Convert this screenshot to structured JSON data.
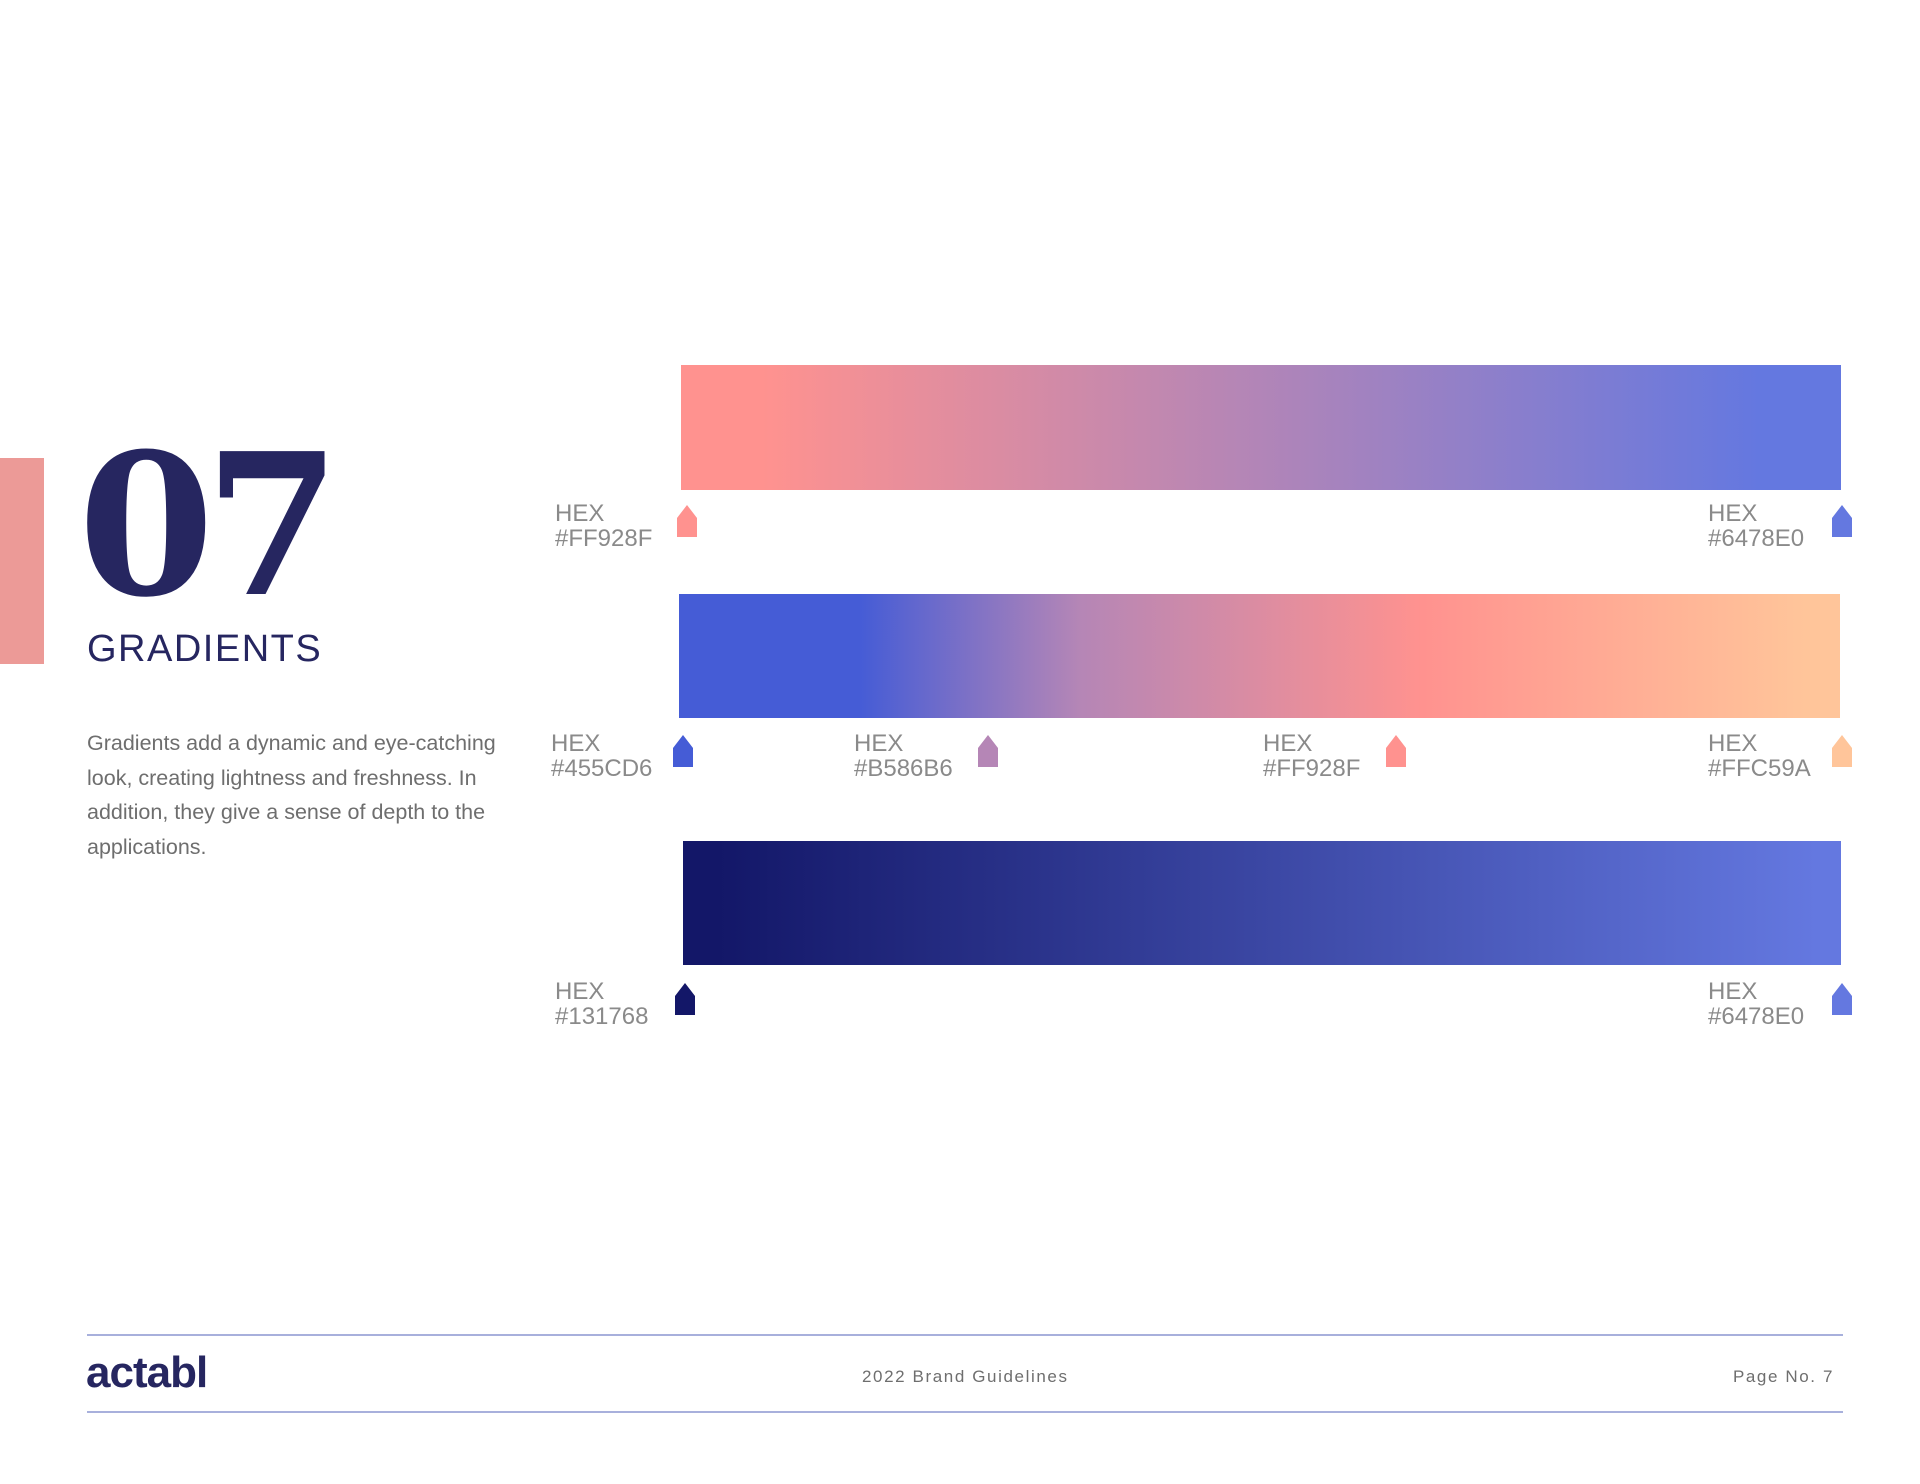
{
  "section": {
    "number": "07",
    "title": "GRADIENTS",
    "description": "Gradients add a dynamic and eye-catching look, creating lightness and freshness. In addition, they give a sense of depth to the applications.",
    "accent_color": "#EC9A97"
  },
  "gradients": [
    {
      "stops": [
        {
          "label": "HEX",
          "hex": "#FF928F",
          "position": 0.0
        },
        {
          "label": "HEX",
          "hex": "#6478E0",
          "position": 1.0
        }
      ]
    },
    {
      "stops": [
        {
          "label": "HEX",
          "hex": "#455CD6",
          "position": 0.0
        },
        {
          "label": "HEX",
          "hex": "#B586B6",
          "position": 0.3
        },
        {
          "label": "HEX",
          "hex": "#FF928F",
          "position": 0.65
        },
        {
          "label": "HEX",
          "hex": "#FFC59A",
          "position": 1.0
        }
      ]
    },
    {
      "stops": [
        {
          "label": "HEX",
          "hex": "#131768",
          "position": 0.0
        },
        {
          "label": "HEX",
          "hex": "#6478E0",
          "position": 1.0
        }
      ]
    }
  ],
  "footer": {
    "logo": "actabl",
    "center": "2022 Brand Guidelines",
    "page": "Page No. 7"
  }
}
